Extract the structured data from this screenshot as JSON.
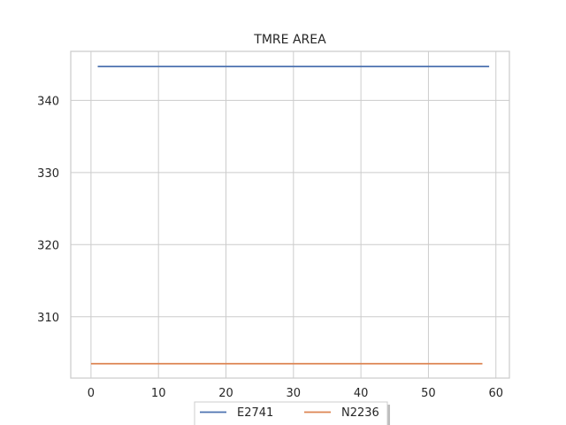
{
  "chart_data": {
    "type": "line",
    "title": "TMRE AREA",
    "xlabel": "",
    "ylabel": "",
    "xlim": [
      -3,
      62
    ],
    "ylim": [
      301.5,
      346.8
    ],
    "x_ticks": [
      0,
      10,
      20,
      30,
      40,
      50,
      60
    ],
    "y_ticks": [
      310,
      320,
      330,
      340
    ],
    "grid": true,
    "legend_position": "bottom-center",
    "series": [
      {
        "name": "E2741",
        "color": "#4c72b0",
        "x": [
          1,
          59
        ],
        "y": [
          344.7,
          344.7
        ]
      },
      {
        "name": "N2236",
        "color": "#dd8452",
        "x": [
          0,
          58
        ],
        "y": [
          303.5,
          303.5
        ]
      }
    ]
  }
}
